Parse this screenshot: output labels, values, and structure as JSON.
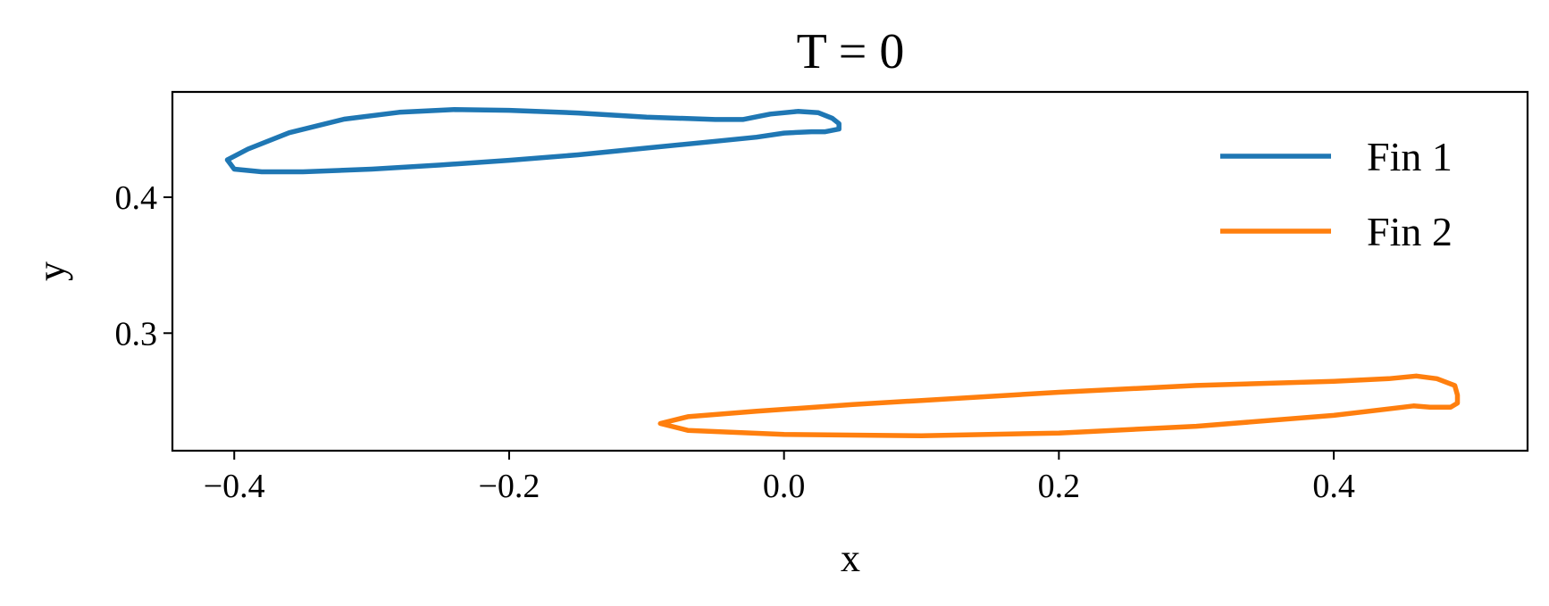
{
  "chart_data": {
    "type": "line",
    "title": "T = 0",
    "xlabel": "x",
    "ylabel": "y",
    "xlim": [
      -0.445,
      0.541
    ],
    "ylim": [
      0.2135,
      0.4775
    ],
    "xticks": [
      -0.4,
      -0.2,
      0.0,
      0.2,
      0.4
    ],
    "xtick_labels": [
      "−0.4",
      "−0.2",
      "0.0",
      "0.2",
      "0.4"
    ],
    "yticks": [
      0.3,
      0.4
    ],
    "ytick_labels": [
      "0.3",
      "0.4"
    ],
    "grid": false,
    "legend_position": "upper-right",
    "series": [
      {
        "name": "Fin 1",
        "color": "#1f77b4",
        "closed": true,
        "x": [
          -0.405,
          -0.39,
          -0.36,
          -0.32,
          -0.28,
          -0.24,
          -0.2,
          -0.15,
          -0.1,
          -0.05,
          -0.03,
          -0.01,
          0.01,
          0.025,
          0.035,
          0.04,
          0.04,
          0.03,
          0.02,
          0.0,
          -0.02,
          -0.05,
          -0.1,
          -0.15,
          -0.2,
          -0.25,
          -0.3,
          -0.35,
          -0.38,
          -0.4,
          -0.405
        ],
        "y": [
          0.4275,
          0.4355,
          0.4475,
          0.4575,
          0.4625,
          0.4645,
          0.464,
          0.462,
          0.459,
          0.4572,
          0.4572,
          0.4612,
          0.4632,
          0.4622,
          0.4582,
          0.4542,
          0.4502,
          0.4482,
          0.4482,
          0.4472,
          0.4442,
          0.4412,
          0.4362,
          0.4312,
          0.4272,
          0.4237,
          0.4207,
          0.4187,
          0.4187,
          0.4207,
          0.4275
        ]
      },
      {
        "name": "Fin 2",
        "color": "#ff7f0e",
        "closed": true,
        "x": [
          -0.09,
          -0.07,
          -0.02,
          0.05,
          0.1,
          0.2,
          0.3,
          0.4,
          0.42,
          0.44,
          0.46,
          0.475,
          0.488,
          0.49,
          0.49,
          0.485,
          0.47,
          0.458,
          0.45,
          0.4,
          0.3,
          0.2,
          0.1,
          0.0,
          -0.07,
          -0.09
        ],
        "y": [
          0.2335,
          0.2385,
          0.2425,
          0.2475,
          0.2505,
          0.2565,
          0.2615,
          0.2645,
          0.2655,
          0.2665,
          0.2685,
          0.2665,
          0.2615,
          0.2545,
          0.2485,
          0.2455,
          0.2455,
          0.2465,
          0.2455,
          0.2395,
          0.2315,
          0.2265,
          0.2245,
          0.2255,
          0.2285,
          0.2335
        ]
      }
    ]
  }
}
